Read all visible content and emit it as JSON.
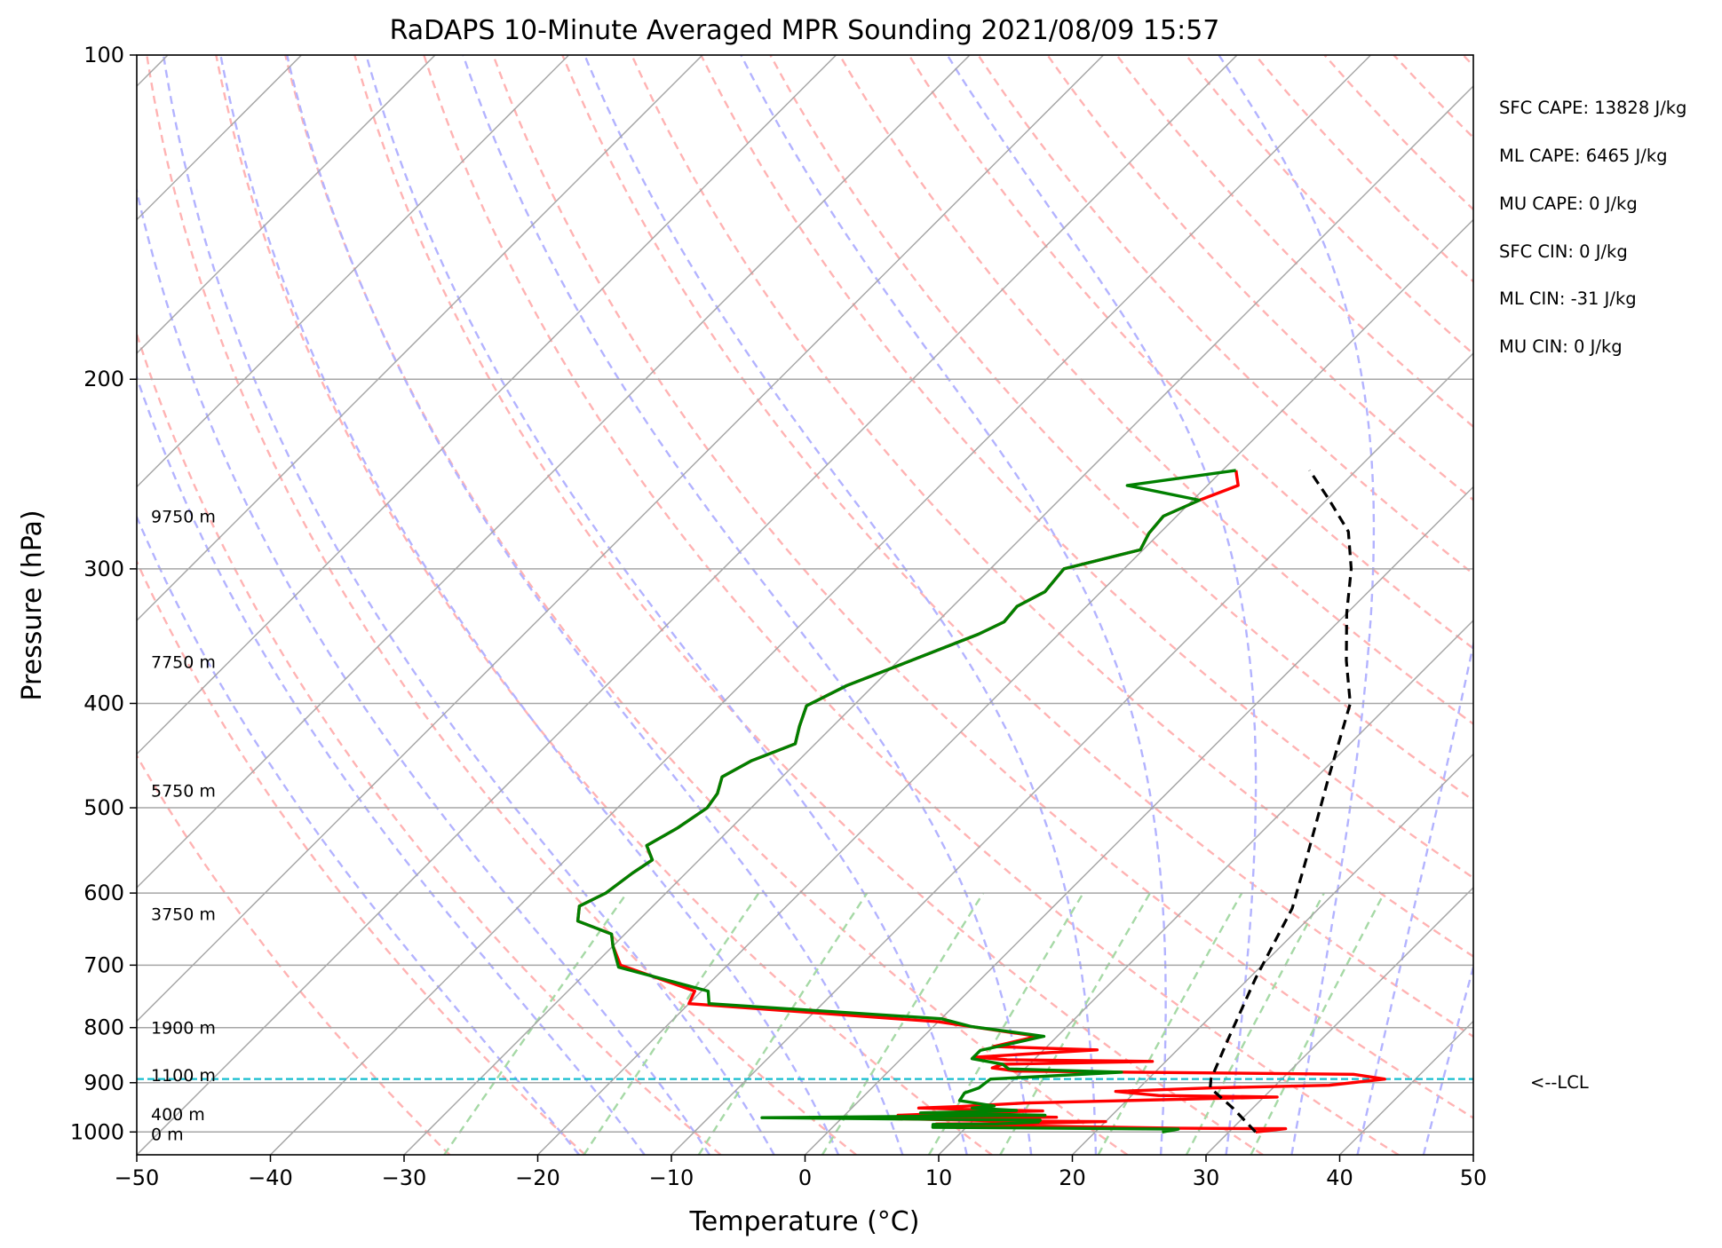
{
  "chart_data": {
    "type": "line",
    "title": "RaDAPS 10-Minute Averaged MPR Sounding 2021/08/09 15:57",
    "xlabel": "Temperature (°C)",
    "ylabel": "Pressure (hPa)",
    "xlim": [
      -50,
      50
    ],
    "ylim": [
      1050,
      100
    ],
    "y_scale": "log",
    "skew": "skew-T log-P",
    "grid": true,
    "x_ticks": [
      "−50",
      "−40",
      "−30",
      "−20",
      "−10",
      "0",
      "10",
      "20",
      "30",
      "40",
      "50"
    ],
    "y_ticks": [
      "100",
      "200",
      "300",
      "400",
      "500",
      "600",
      "700",
      "800",
      "900",
      "1000"
    ],
    "x_tick_values": [
      -50,
      -40,
      -30,
      -20,
      -10,
      0,
      10,
      20,
      30,
      40,
      50
    ],
    "y_tick_values": [
      100,
      200,
      300,
      400,
      500,
      600,
      700,
      800,
      900,
      1000
    ],
    "height_labels": [
      {
        "text": "9750 m",
        "p": 268
      },
      {
        "text": "7750 m",
        "p": 366
      },
      {
        "text": "5750 m",
        "p": 482
      },
      {
        "text": "3750 m",
        "p": 627
      },
      {
        "text": "1900 m",
        "p": 800
      },
      {
        "text": "1100 m",
        "p": 885
      },
      {
        "text": "400 m",
        "p": 962
      },
      {
        "text": "0 m",
        "p": 1004
      }
    ],
    "colors": {
      "temperature": "#ff0000",
      "dewpoint": "#008000",
      "parcel": "#000000",
      "lcl": "#17becf",
      "isotherm": "#a6a6a6",
      "dry_adiabat": "#ffb3b3",
      "moist_adiabat": "#b3b3ff",
      "mixing_ratio": "#a6d9a6",
      "isobar": "#a6a6a6"
    },
    "series": [
      {
        "kind": "temperature",
        "points": [
          [
            32.0,
            1000
          ],
          [
            34.0,
            993
          ],
          [
            26.0,
            992
          ],
          [
            21.0,
            990
          ],
          [
            14.0,
            987
          ],
          [
            7.5,
            986
          ],
          [
            7.5,
            983
          ],
          [
            14.0,
            982
          ],
          [
            20.0,
            978
          ],
          [
            13.0,
            977
          ],
          [
            4.0,
            972
          ],
          [
            16.0,
            969
          ],
          [
            4.0,
            965
          ],
          [
            8.5,
            960
          ],
          [
            14.5,
            956
          ],
          [
            9.0,
            953
          ],
          [
            5.0,
            950
          ],
          [
            8.0,
            947
          ],
          [
            12.5,
            940
          ],
          [
            20.0,
            935
          ],
          [
            31.0,
            928
          ],
          [
            22.0,
            925
          ],
          [
            18.5,
            917
          ],
          [
            25.5,
            910
          ],
          [
            34.0,
            905
          ],
          [
            37.7,
            893
          ],
          [
            35.0,
            884
          ],
          [
            9.5,
            878
          ],
          [
            7.5,
            872
          ],
          [
            8.0,
            865
          ],
          [
            19.0,
            860
          ],
          [
            8.0,
            857
          ],
          [
            5.5,
            852
          ],
          [
            10.0,
            845
          ],
          [
            14.0,
            839
          ],
          [
            6.0,
            833
          ],
          [
            8.5,
            815
          ],
          [
            0.0,
            790
          ],
          [
            -20.0,
            760
          ],
          [
            -20.5,
            740
          ],
          [
            -28.0,
            700
          ],
          [
            -30.0,
            672
          ],
          [
            -31.0,
            655
          ],
          [
            -34.5,
            637
          ],
          [
            -35.5,
            617
          ],
          [
            -34.5,
            600
          ],
          [
            -34.0,
            575
          ],
          [
            -33.5,
            559
          ],
          [
            -35.0,
            542
          ],
          [
            -34.0,
            522
          ],
          [
            -33.3,
            500
          ],
          [
            -33.6,
            485
          ],
          [
            -34.5,
            468
          ],
          [
            -33.5,
            452
          ],
          [
            -31.5,
            436
          ],
          [
            -32.5,
            420
          ],
          [
            -33.5,
            402
          ],
          [
            -32.0,
            385
          ],
          [
            -29.5,
            368
          ],
          [
            -26.0,
            345
          ],
          [
            -25.0,
            336
          ],
          [
            -25.2,
            325
          ],
          [
            -24.2,
            315
          ],
          [
            -24.5,
            300
          ],
          [
            -20.2,
            288
          ],
          [
            -20.8,
            278
          ],
          [
            -21.0,
            268
          ],
          [
            -19.5,
            259
          ],
          [
            -17.7,
            251
          ],
          [
            -19.0,
            243
          ]
        ]
      },
      {
        "kind": "dewpoint",
        "points": [
          [
            25.0,
            1000
          ],
          [
            26.0,
            994
          ],
          [
            7.5,
            990
          ],
          [
            7.3,
            984
          ],
          [
            12.0,
            983
          ],
          [
            15.0,
            979
          ],
          [
            15.0,
            975
          ],
          [
            -6.0,
            970
          ],
          [
            15.0,
            965
          ],
          [
            5.5,
            960
          ],
          [
            12.5,
            955
          ],
          [
            9.0,
            950
          ],
          [
            10.5,
            946
          ],
          [
            7.5,
            935
          ],
          [
            7.3,
            920
          ],
          [
            8.0,
            910
          ],
          [
            8.2,
            893
          ],
          [
            17.5,
            880
          ],
          [
            8.8,
            874
          ],
          [
            8.0,
            865
          ],
          [
            5.3,
            855
          ],
          [
            5.3,
            840
          ],
          [
            9.0,
            815
          ],
          [
            2.8,
            798
          ],
          [
            0.0,
            785
          ],
          [
            -18.5,
            760
          ],
          [
            -19.5,
            740
          ],
          [
            -28.0,
            703
          ],
          [
            -30.0,
            672
          ],
          [
            -31.0,
            655
          ],
          [
            -34.5,
            637
          ],
          [
            -35.5,
            617
          ],
          [
            -34.5,
            600
          ],
          [
            -34.0,
            575
          ],
          [
            -33.5,
            559
          ],
          [
            -35.0,
            542
          ],
          [
            -34.0,
            522
          ],
          [
            -33.3,
            500
          ],
          [
            -33.6,
            485
          ],
          [
            -34.5,
            468
          ],
          [
            -33.5,
            452
          ],
          [
            -31.5,
            436
          ],
          [
            -32.5,
            420
          ],
          [
            -33.5,
            402
          ],
          [
            -32.0,
            385
          ],
          [
            -29.5,
            368
          ],
          [
            -26.0,
            345
          ],
          [
            -25.0,
            336
          ],
          [
            -25.2,
            325
          ],
          [
            -24.2,
            315
          ],
          [
            -24.5,
            300
          ],
          [
            -20.2,
            288
          ],
          [
            -20.8,
            278
          ],
          [
            -21.0,
            268
          ],
          [
            -19.5,
            259
          ],
          [
            -26.0,
            251
          ],
          [
            -19.0,
            243
          ]
        ]
      },
      {
        "kind": "parcel",
        "points": [
          [
            32.0,
            1000
          ],
          [
            28.5,
            950
          ],
          [
            25.3,
            910
          ],
          [
            24.7,
            893
          ],
          [
            23.0,
            820
          ],
          [
            20.5,
            720
          ],
          [
            18.0,
            620
          ],
          [
            15.0,
            550
          ],
          [
            11.0,
            470
          ],
          [
            7.0,
            400
          ],
          [
            3.5,
            365
          ],
          [
            0.0,
            330
          ],
          [
            -3.0,
            300
          ],
          [
            -6.0,
            277
          ],
          [
            -10.0,
            258
          ],
          [
            -13.5,
            243
          ]
        ]
      }
    ],
    "lcl": {
      "p": 893,
      "label": "<--LCL"
    },
    "indices": [
      "SFC CAPE: 13828 J/kg",
      "ML CAPE: 6465 J/kg",
      "MU CAPE: 0 J/kg",
      "SFC CIN: 0 J/kg",
      "ML CIN: -31 J/kg",
      "MU CIN: 0 J/kg"
    ]
  }
}
